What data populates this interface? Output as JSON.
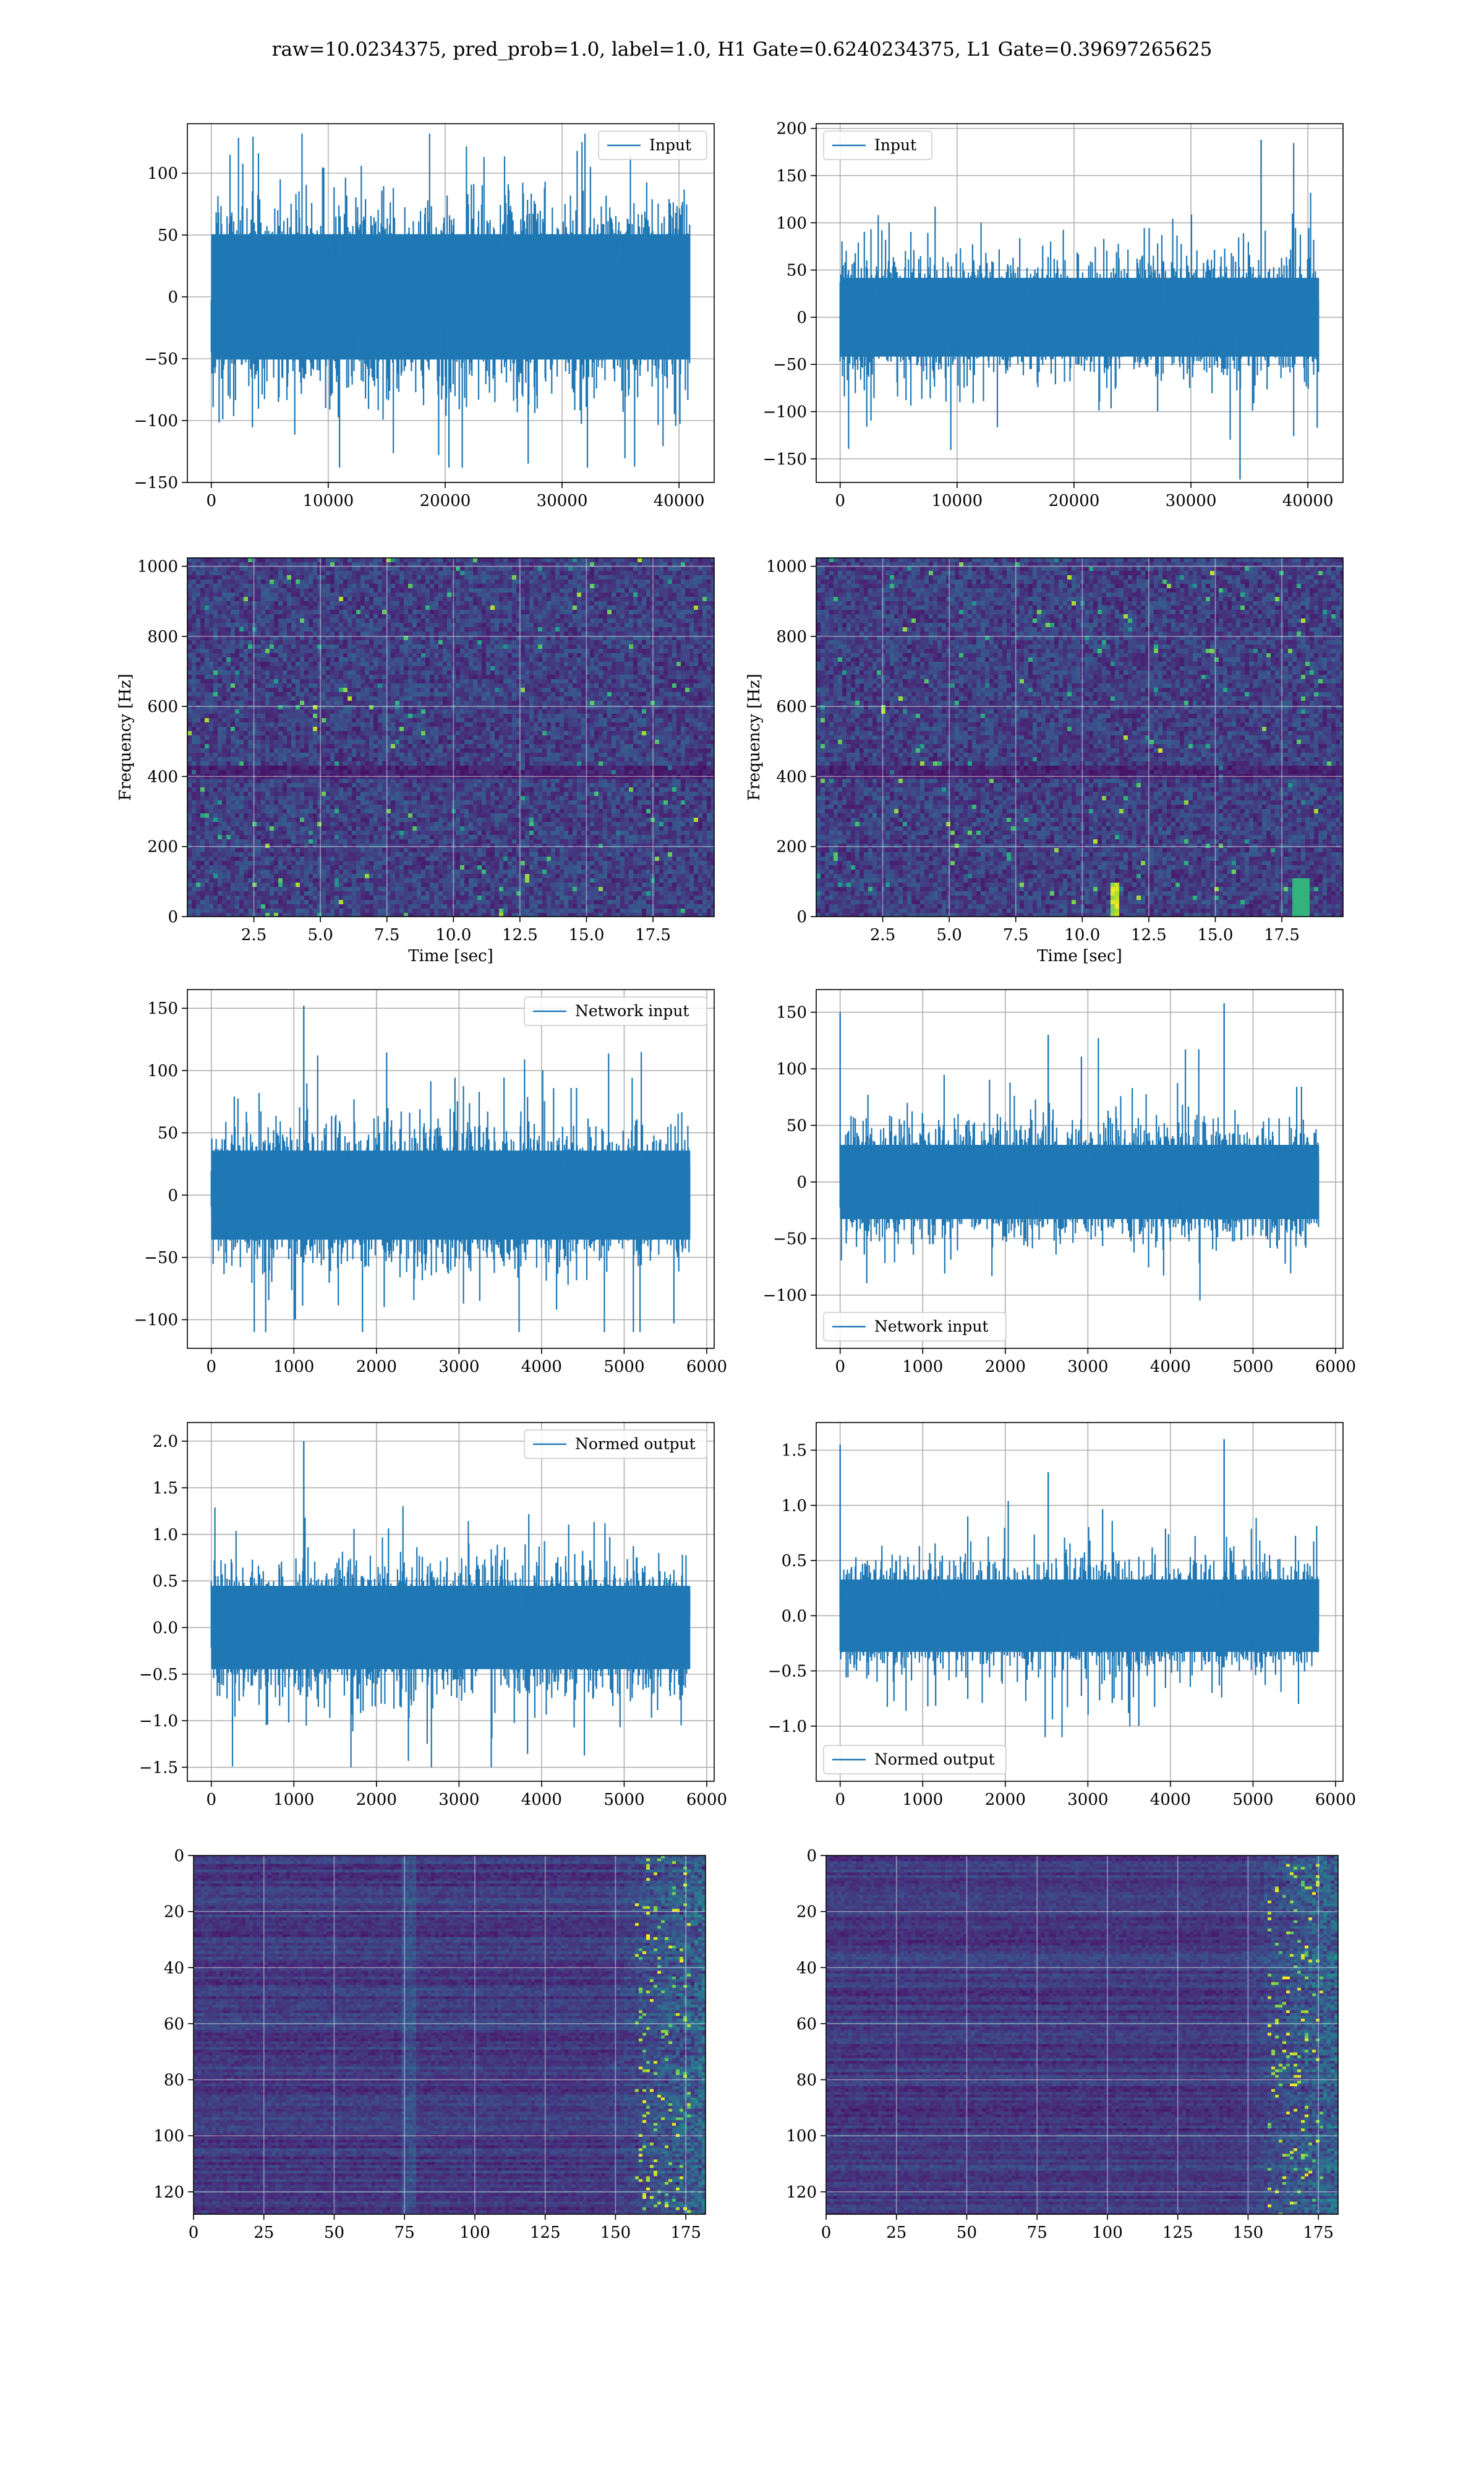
{
  "figure": {
    "suptitle": "raw=10.0234375, pred_prob=1.0, label=1.0, H1 Gate=0.6240234375, L1 Gate=0.39697265625",
    "line_color": "#1f77b4",
    "heat_low_color": "#440154",
    "heat_high_color": "#fde725"
  },
  "chart_data": [
    {
      "type": "line",
      "id": "h1-input",
      "legend": "Input",
      "legend_loc": "upper right",
      "grid": true,
      "xlim": [
        -2048,
        43008
      ],
      "ylim": [
        -150,
        140
      ],
      "xticks": [
        0,
        10000,
        20000,
        30000,
        40000
      ],
      "yticks": [
        -150,
        -100,
        -50,
        0,
        50,
        100
      ],
      "series": [
        {
          "name": "Input",
          "n_points": 40960,
          "amplitude_typical": 85,
          "max": 132,
          "min": -138
        }
      ]
    },
    {
      "type": "line",
      "id": "l1-input",
      "legend": "Input",
      "legend_loc": "upper left",
      "grid": true,
      "xlim": [
        -2048,
        43008
      ],
      "ylim": [
        -175,
        205
      ],
      "xticks": [
        0,
        10000,
        20000,
        30000,
        40000
      ],
      "yticks": [
        -150,
        -100,
        -50,
        0,
        50,
        100,
        150,
        200
      ],
      "series": [
        {
          "name": "Input",
          "n_points": 40960,
          "amplitude_typical": 70,
          "max": 188,
          "min": -172,
          "spikes": [
            [
              36000,
              188
            ],
            [
              34200,
              -172
            ]
          ]
        }
      ]
    },
    {
      "type": "heatmap",
      "id": "h1-spectrogram",
      "xlabel": "Time [sec]",
      "ylabel": "Frequency [Hz]",
      "xlim": [
        0,
        19.8
      ],
      "ylim": [
        0,
        1024
      ],
      "xticks": [
        2.5,
        5.0,
        7.5,
        10.0,
        12.5,
        15.0,
        17.5
      ],
      "yticks": [
        0,
        200,
        400,
        600,
        800,
        1000
      ],
      "grid": true
    },
    {
      "type": "heatmap",
      "id": "l1-spectrogram",
      "xlabel": "Time [sec]",
      "ylabel": "Frequency [Hz]",
      "xlim": [
        0,
        19.8
      ],
      "ylim": [
        0,
        1024
      ],
      "xticks": [
        2.5,
        5.0,
        7.5,
        10.0,
        12.5,
        15.0,
        17.5
      ],
      "yticks": [
        0,
        200,
        400,
        600,
        800,
        1000
      ],
      "grid": true
    },
    {
      "type": "line",
      "id": "h1-network-input",
      "legend": "Network input",
      "legend_loc": "upper right",
      "grid": true,
      "xlim": [
        -290,
        6090
      ],
      "ylim": [
        -123,
        165
      ],
      "xticks": [
        0,
        1000,
        2000,
        3000,
        4000,
        5000,
        6000
      ],
      "yticks": [
        -100,
        -50,
        0,
        50,
        100,
        150
      ],
      "series": [
        {
          "name": "Network input",
          "n_points": 5800,
          "amplitude_typical": 60,
          "max": 152,
          "min": -110,
          "spikes": [
            [
              1120,
              152
            ]
          ]
        }
      ]
    },
    {
      "type": "line",
      "id": "l1-network-input",
      "legend": "Network input",
      "legend_loc": "lower left",
      "grid": true,
      "xlim": [
        -290,
        6090
      ],
      "ylim": [
        -147,
        170
      ],
      "xticks": [
        0,
        1000,
        2000,
        3000,
        4000,
        5000,
        6000
      ],
      "yticks": [
        -100,
        -50,
        0,
        50,
        100,
        150
      ],
      "series": [
        {
          "name": "Network input",
          "n_points": 5800,
          "amplitude_typical": 55,
          "max": 158,
          "min": -125,
          "spikes": [
            [
              4650,
              158
            ],
            [
              0,
              150
            ],
            [
              2520,
              130
            ]
          ]
        }
      ]
    },
    {
      "type": "line",
      "id": "h1-normed-output",
      "legend": "Normed output",
      "legend_loc": "upper right",
      "grid": true,
      "xlim": [
        -290,
        6090
      ],
      "ylim": [
        -1.65,
        2.2
      ],
      "xticks": [
        0,
        1000,
        2000,
        3000,
        4000,
        5000,
        6000
      ],
      "yticks": [
        -1.5,
        -1.0,
        -0.5,
        0.0,
        0.5,
        1.0,
        1.5,
        2.0
      ],
      "series": [
        {
          "name": "Normed output",
          "n_points": 5800,
          "amplitude_typical": 0.75,
          "max": 2.0,
          "min": -1.5,
          "spikes": [
            [
              1120,
              2.0
            ]
          ]
        }
      ]
    },
    {
      "type": "line",
      "id": "l1-normed-output",
      "legend": "Normed output",
      "legend_loc": "lower left",
      "grid": true,
      "xlim": [
        -290,
        6090
      ],
      "ylim": [
        -1.5,
        1.75
      ],
      "xticks": [
        0,
        1000,
        2000,
        3000,
        4000,
        5000,
        6000
      ],
      "yticks": [
        -1.0,
        -0.5,
        0.0,
        0.5,
        1.0,
        1.5
      ],
      "series": [
        {
          "name": "Normed output",
          "n_points": 5800,
          "amplitude_typical": 0.55,
          "max": 1.6,
          "min": -1.1,
          "spikes": [
            [
              4650,
              1.6
            ],
            [
              0,
              1.55
            ],
            [
              2520,
              1.3
            ]
          ]
        }
      ]
    },
    {
      "type": "heatmap",
      "id": "h1-feature-map",
      "xlim": [
        0,
        182
      ],
      "ylim": [
        128,
        0
      ],
      "xticks": [
        0,
        25,
        50,
        75,
        100,
        125,
        150,
        175
      ],
      "yticks": [
        0,
        20,
        40,
        60,
        80,
        100,
        120
      ],
      "grid": true
    },
    {
      "type": "heatmap",
      "id": "l1-feature-map",
      "xlim": [
        0,
        182
      ],
      "ylim": [
        128,
        0
      ],
      "xticks": [
        0,
        25,
        50,
        75,
        100,
        125,
        150,
        175
      ],
      "yticks": [
        0,
        20,
        40,
        60,
        80,
        100,
        120
      ],
      "grid": true
    }
  ]
}
